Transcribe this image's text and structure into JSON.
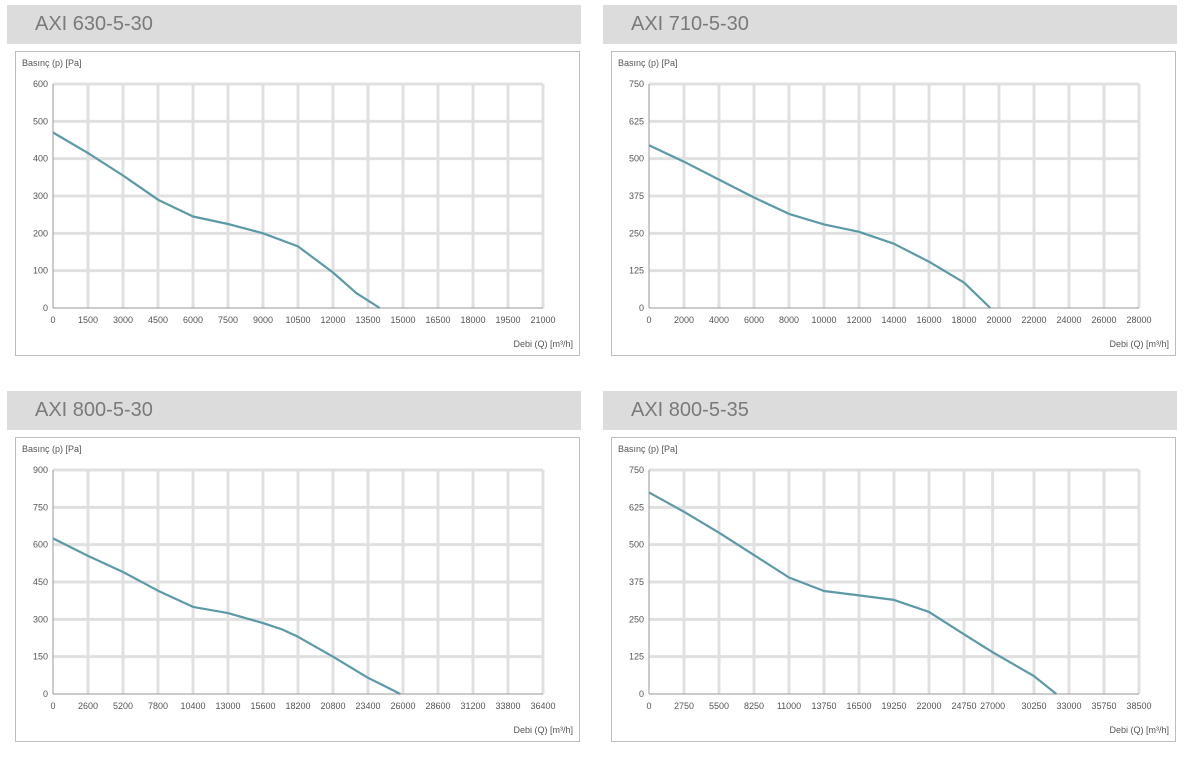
{
  "charts": [
    {
      "title": "AXI 630-5-30",
      "chart_data": {
        "type": "line",
        "ylabel": "Basınç (p) [Pa]",
        "xlabel": "Debi (Q) [m³/h]",
        "xlim": [
          0,
          21000
        ],
        "ylim": [
          0,
          600
        ],
        "xticks": [
          0,
          1500,
          3000,
          4500,
          6000,
          7500,
          9000,
          10500,
          12000,
          13500,
          15000,
          16500,
          18000,
          19500,
          21000
        ],
        "yticks": [
          0,
          100,
          200,
          300,
          400,
          500,
          600
        ],
        "series": [
          {
            "x": [
              0,
              1500,
              3000,
              4500,
              6000,
              7500,
              9000,
              10500,
              12000,
              13000,
              14000
            ],
            "y": [
              470,
              415,
              355,
              290,
              245,
              225,
              200,
              165,
              95,
              40,
              0
            ]
          }
        ]
      }
    },
    {
      "title": "AXI 710-5-30",
      "chart_data": {
        "type": "line",
        "ylabel": "Basınç (p) [Pa]",
        "xlabel": "Debi (Q) [m³/h]",
        "xlim": [
          0,
          28000
        ],
        "ylim": [
          0,
          750
        ],
        "xticks": [
          0,
          2000,
          4000,
          6000,
          8000,
          10000,
          12000,
          14000,
          16000,
          18000,
          20000,
          22000,
          24000,
          26000,
          28000
        ],
        "yticks": [
          0,
          125,
          250,
          375,
          500,
          625,
          750
        ],
        "series": [
          {
            "x": [
              0,
              2000,
              4000,
              6000,
              8000,
              10000,
              12000,
              14000,
              16000,
              18000,
              19500
            ],
            "y": [
              545,
              490,
              430,
              370,
              315,
              280,
              255,
              215,
              155,
              85,
              0
            ]
          }
        ]
      }
    },
    {
      "title": "AXI 800-5-30",
      "chart_data": {
        "type": "line",
        "ylabel": "Basınç (p) [Pa]",
        "xlabel": "Debi (Q) [m³/h]",
        "xlim": [
          0,
          36400
        ],
        "ylim": [
          0,
          900
        ],
        "xticks": [
          0,
          2600,
          5200,
          7800,
          10400,
          13000,
          15600,
          18200,
          20800,
          23400,
          26000,
          28600,
          31200,
          33800,
          36400
        ],
        "yticks": [
          0,
          150,
          300,
          450,
          600,
          750,
          900
        ],
        "series": [
          {
            "x": [
              0,
              2600,
              5200,
              7800,
              10400,
              13000,
              15600,
              17000,
              18200,
              20800,
              23400,
              24700,
              25800
            ],
            "y": [
              625,
              555,
              490,
              415,
              350,
              325,
              285,
              260,
              230,
              150,
              65,
              30,
              0
            ]
          }
        ]
      }
    },
    {
      "title": "AXI 800-5-35",
      "chart_data": {
        "type": "line",
        "ylabel": "Basınç (p) [Pa]",
        "xlabel": "Debi (Q) [m³/h]",
        "xlim": [
          0,
          38500
        ],
        "ylim": [
          0,
          750
        ],
        "xticks": [
          0,
          2750,
          5500,
          8250,
          11000,
          13750,
          16500,
          19250,
          22000,
          24750,
          27000,
          30250,
          33000,
          35750,
          38500
        ],
        "yticks": [
          0,
          125,
          250,
          375,
          500,
          625,
          750
        ],
        "series": [
          {
            "x": [
              0,
              2750,
              5500,
              8250,
              11000,
              13750,
              16500,
              19250,
              22000,
              24750,
              27000,
              30250,
              32000
            ],
            "y": [
              675,
              610,
              540,
              465,
              390,
              345,
              330,
              315,
              275,
              200,
              140,
              60,
              0
            ]
          }
        ]
      }
    }
  ],
  "colors": {
    "line": "#5b9aa6",
    "grid": "#e0e0e0",
    "title_bg": "#dcdcdc",
    "title_text": "#7a7a7a"
  }
}
